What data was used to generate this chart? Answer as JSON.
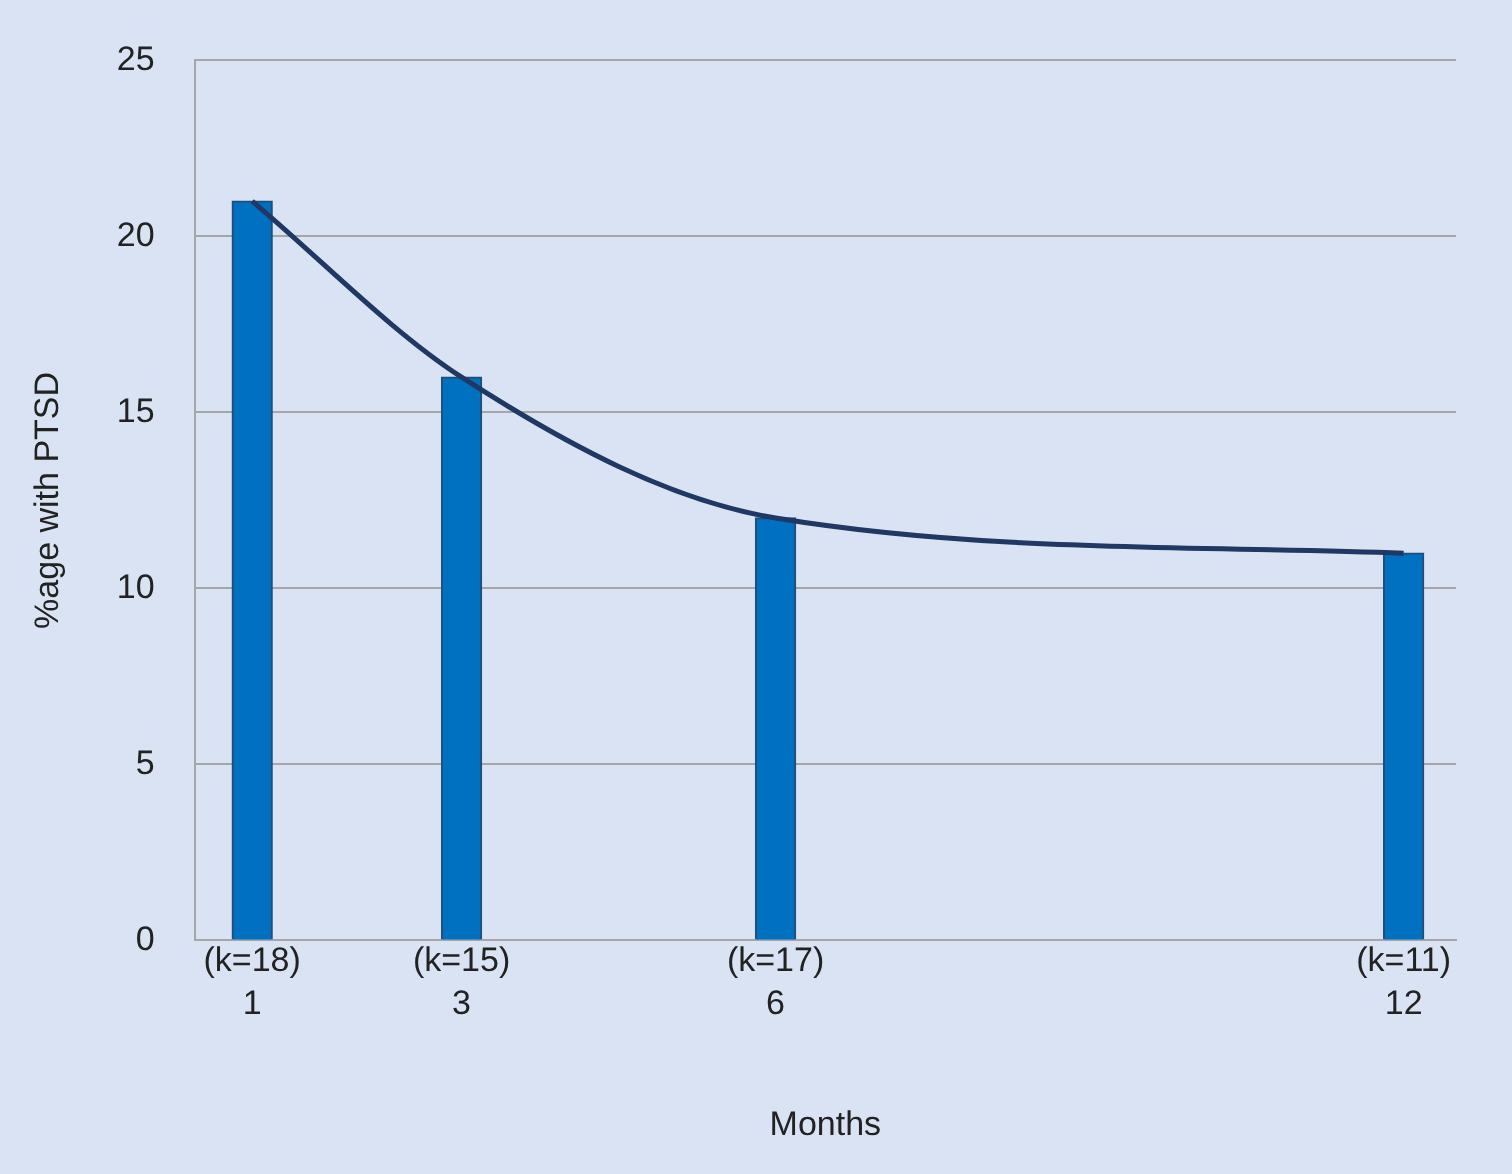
{
  "chart_data": {
    "type": "bar",
    "xlabel": "Months",
    "ylabel": "%age with PTSD",
    "x": [
      1,
      3,
      6,
      12
    ],
    "series": [
      {
        "color": "#0070c0",
        "values": [
          21,
          16,
          12,
          11
        ]
      },
      {
        "type": "line",
        "color": "#1f3864",
        "values": [
          21,
          16,
          12,
          11
        ],
        "x": [
          1,
          3,
          6,
          12
        ]
      }
    ],
    "xlim": [
      0.45,
      12.5
    ],
    "xticks": [
      1,
      3,
      6,
      12
    ],
    "annotations": [
      {
        "text": "(k=18)",
        "x": 1,
        "y": 0
      },
      {
        "text": "(k=15)",
        "x": 3,
        "y": 0
      },
      {
        "text": "(k=17)",
        "x": 6,
        "y": 0
      },
      {
        "text": "(k=11)",
        "x": 12,
        "y": 0
      }
    ],
    "ylim": [
      0,
      25
    ],
    "yticks": [
      0,
      5,
      10,
      15,
      20,
      25
    ],
    "grid": "y",
    "marker": "none",
    "line_style": "solid",
    "legend": false
  }
}
